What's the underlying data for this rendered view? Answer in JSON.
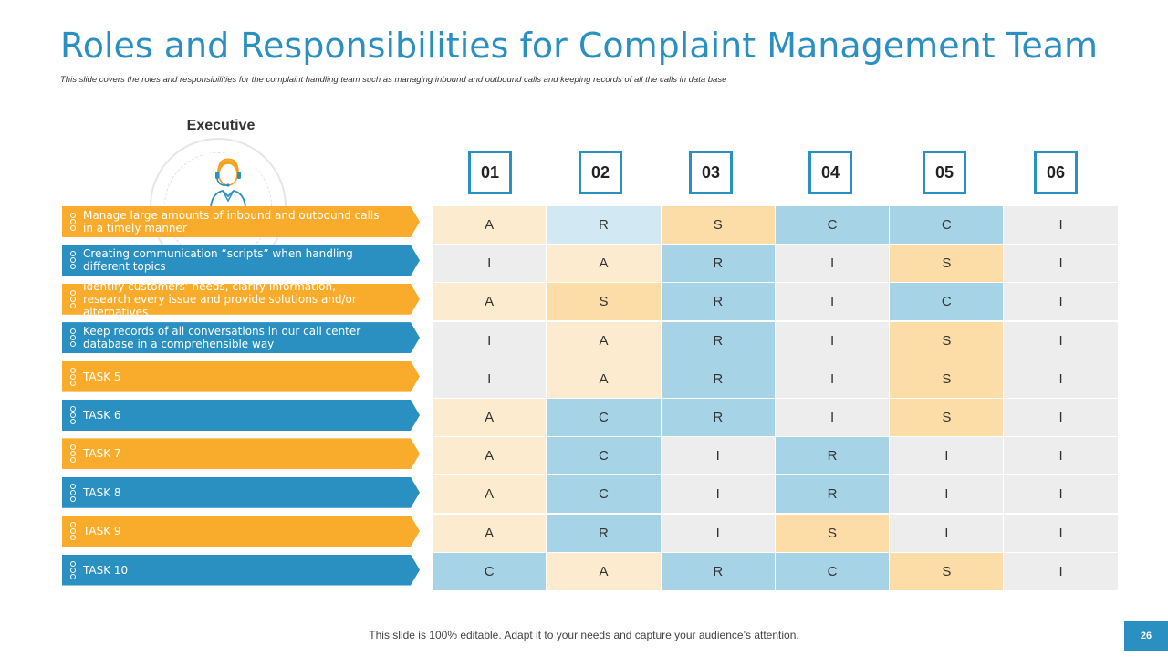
{
  "slide": {
    "title": "Roles and Responsibilities for Complaint Management Team",
    "subtitle": "This slide covers the roles and responsibilities for the complaint handling team such as managing inbound and outbound calls and keeping records of all the calls in data base",
    "executive_label": "Executive",
    "footer": "This slide is 100% editable. Adapt it to your needs and capture your audience’s attention.",
    "page_number": "26"
  },
  "colors": {
    "accent_blue": "#2A8FC1",
    "accent_orange": "#F9AC2B",
    "cell_light_orange": "#FDEBD0",
    "cell_orange": "#FCDCA7",
    "cell_blue": "#A7D3E7",
    "cell_light_blue": "#D2E9F3",
    "cell_gray": "#EDEDED"
  },
  "columns": [
    "01",
    "02",
    "03",
    "04",
    "05",
    "06"
  ],
  "tasks": [
    "Manage large amounts of inbound and outbound calls in a timely manner",
    "Creating  communication “scripts” when handling different topics",
    "Identify customers’ needs, clarify information, research every issue and provide solutions and/or alternatives",
    "Keep records of all conversations in our call center database in a comprehensible way",
    "TASK 5",
    "TASK 6",
    "TASK 7",
    "TASK 8",
    "TASK 9",
    "TASK 10"
  ],
  "matrix": [
    [
      "A",
      "R",
      "S",
      "C",
      "C",
      "I"
    ],
    [
      "I",
      "A",
      "R",
      "I",
      "S",
      "I"
    ],
    [
      "A",
      "S",
      "R",
      "I",
      "C",
      "I"
    ],
    [
      "I",
      "A",
      "R",
      "I",
      "S",
      "I"
    ],
    [
      "I",
      "A",
      "R",
      "I",
      "S",
      "I"
    ],
    [
      "A",
      "C",
      "R",
      "I",
      "S",
      "I"
    ],
    [
      "A",
      "C",
      "I",
      "R",
      "I",
      "I"
    ],
    [
      "A",
      "C",
      "I",
      "R",
      "I",
      "I"
    ],
    [
      "A",
      "R",
      "I",
      "S",
      "I",
      "I"
    ],
    [
      "C",
      "A",
      "R",
      "C",
      "S",
      "I"
    ]
  ],
  "cell_fills": [
    [
      "lo",
      "lb",
      "o",
      "b",
      "b",
      "g"
    ],
    [
      "g",
      "lo",
      "b",
      "g",
      "o",
      "g"
    ],
    [
      "lo",
      "o",
      "b",
      "g",
      "b",
      "g"
    ],
    [
      "g",
      "lo",
      "b",
      "g",
      "o",
      "g"
    ],
    [
      "g",
      "lo",
      "b",
      "g",
      "o",
      "g"
    ],
    [
      "lo",
      "b",
      "b",
      "g",
      "o",
      "g"
    ],
    [
      "lo",
      "b",
      "g",
      "b",
      "g",
      "g"
    ],
    [
      "lo",
      "b",
      "g",
      "b",
      "g",
      "g"
    ],
    [
      "lo",
      "b",
      "g",
      "o",
      "g",
      "g"
    ],
    [
      "b",
      "lo",
      "b",
      "b",
      "o",
      "g"
    ]
  ]
}
